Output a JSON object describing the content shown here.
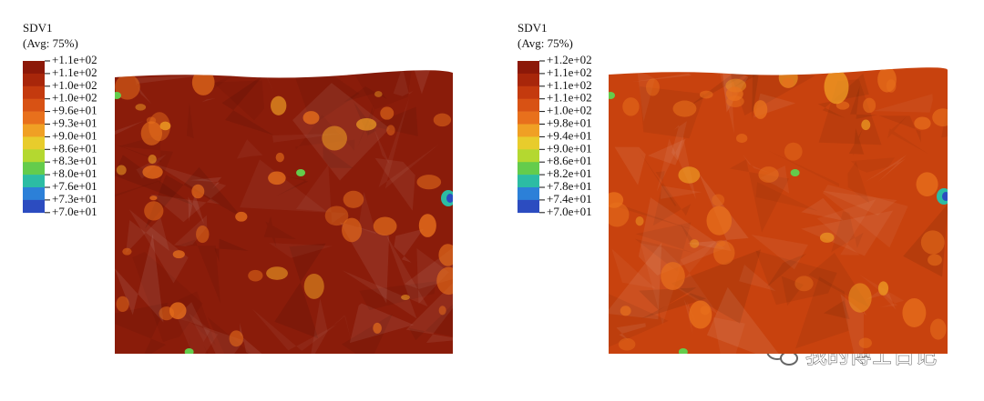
{
  "panels": [
    {
      "title": "SDV1",
      "subtitle": "(Avg: 75%)",
      "legend": [
        "+1.1e+02",
        "+1.1e+02",
        "+1.0e+02",
        "+1.0e+02",
        "+9.6e+01",
        "+9.3e+01",
        "+9.0e+01",
        "+8.6e+01",
        "+8.3e+01",
        "+8.0e+01",
        "+7.6e+01",
        "+7.3e+01",
        "+7.0e+01"
      ]
    },
    {
      "title": "SDV1",
      "subtitle": "(Avg: 75%)",
      "legend": [
        "+1.2e+02",
        "+1.1e+02",
        "+1.1e+02",
        "+1.1e+02",
        "+1.0e+02",
        "+9.8e+01",
        "+9.4e+01",
        "+9.0e+01",
        "+8.6e+01",
        "+8.2e+01",
        "+7.8e+01",
        "+7.4e+01",
        "+7.0e+01"
      ]
    }
  ],
  "watermark": "我的博士日记"
}
